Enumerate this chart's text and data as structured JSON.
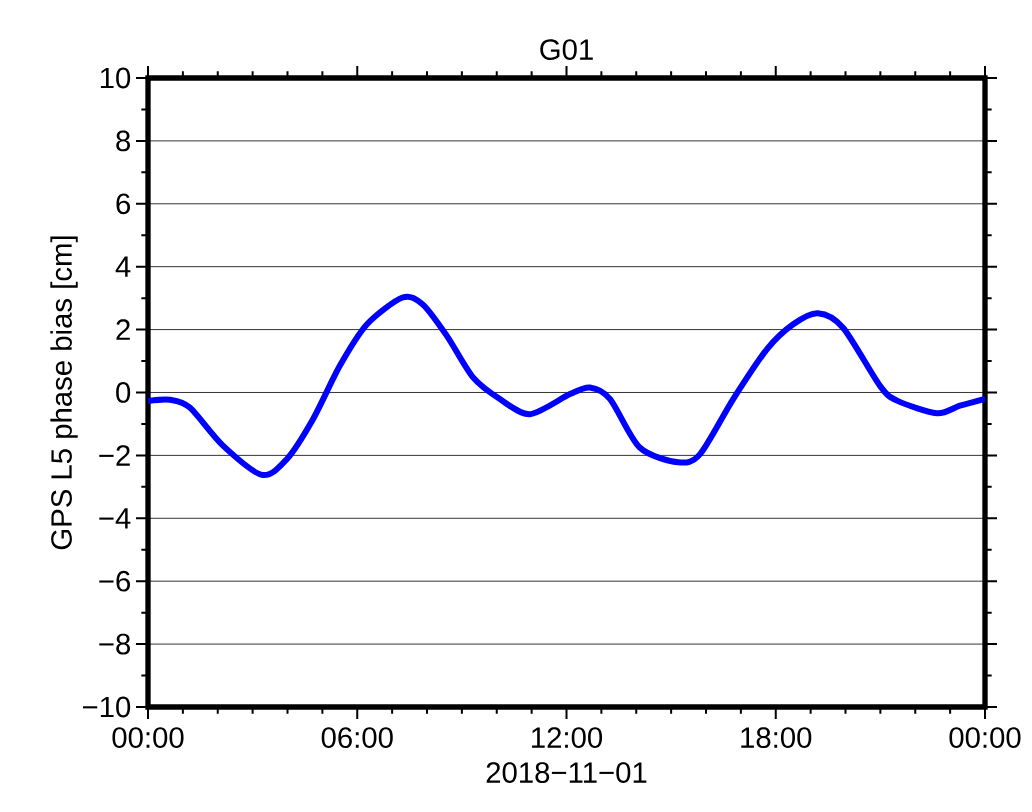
{
  "chart_data": {
    "type": "line",
    "title": "G01",
    "xlabel": "2018−11−01",
    "ylabel": "GPS L5 phase bias [cm]",
    "x": [
      0,
      0.63,
      1.2,
      2.15,
      3.27,
      3.98,
      4.73,
      5.5,
      6.28,
      7.3,
      7.88,
      8.57,
      9.32,
      10.09,
      10.95,
      12.1,
      12.67,
      13.25,
      14.1,
      15.2,
      15.83,
      16.78,
      17.75,
      18.5,
      19.21,
      19.93,
      20.99,
      21.48,
      22.62,
      23.28,
      24
    ],
    "series": [
      {
        "color": "#0000ff",
        "values": [
          -0.27,
          -0.23,
          -0.48,
          -1.69,
          -2.62,
          -2.12,
          -0.85,
          0.85,
          2.17,
          3.02,
          2.8,
          1.8,
          0.48,
          -0.21,
          -0.69,
          -0.05,
          0.16,
          -0.21,
          -1.75,
          -2.22,
          -1.96,
          -0.21,
          1.38,
          2.17,
          2.52,
          2.06,
          0.21,
          -0.26,
          -0.66,
          -0.42,
          -0.2
        ]
      }
    ],
    "xlim": [
      0,
      24
    ],
    "xticks": [
      {
        "value": 0,
        "label": "00:00"
      },
      {
        "value": 6,
        "label": "06:00"
      },
      {
        "value": 12,
        "label": "12:00"
      },
      {
        "value": 18,
        "label": "18:00"
      },
      {
        "value": 24,
        "label": "00:00"
      }
    ],
    "ylim": [
      -10,
      10
    ],
    "yticks": [
      {
        "value": -10,
        "label": "−10"
      },
      {
        "value": -8,
        "label": "−8"
      },
      {
        "value": -6,
        "label": "−6"
      },
      {
        "value": -4,
        "label": "−4"
      },
      {
        "value": -2,
        "label": "−2"
      },
      0,
      2,
      4,
      6,
      8,
      10
    ],
    "grid": "y"
  }
}
